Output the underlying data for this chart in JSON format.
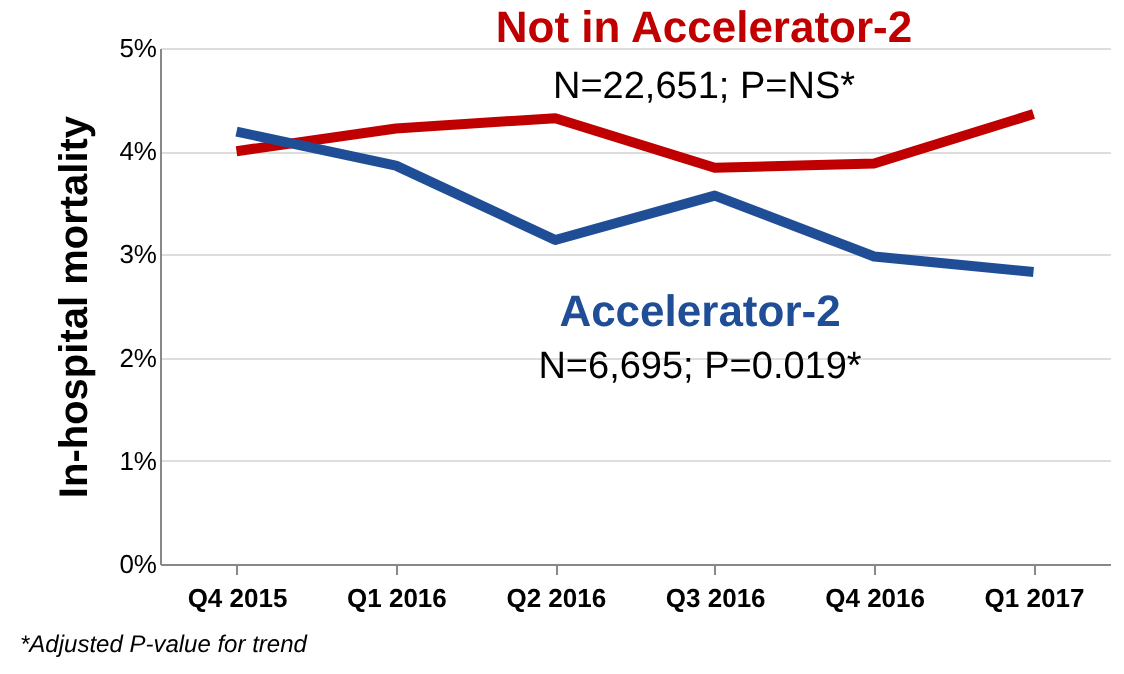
{
  "chart_data": {
    "type": "line",
    "ylabel": "In-hospital mortality",
    "categories": [
      "Q4 2015",
      "Q1 2016",
      "Q2 2016",
      "Q3 2016",
      "Q4 2016",
      "Q1 2017"
    ],
    "series": [
      {
        "name": "Not in Accelerator-2",
        "color": "#c00000",
        "values": [
          4.0,
          4.22,
          4.32,
          3.84,
          3.88,
          4.36
        ]
      },
      {
        "name": "Accelerator-2",
        "color": "#1f4e96",
        "values": [
          4.19,
          3.86,
          3.14,
          3.57,
          2.98,
          2.83
        ]
      }
    ],
    "annotations": [
      "N=22,651; P=NS*",
      "N=6,695; P=0.019*",
      "*Adjusted P-value for trend"
    ],
    "ylim": [
      0,
      5
    ],
    "yticks": [
      {
        "value": 0,
        "label": "0%"
      },
      {
        "value": 1,
        "label": "1%"
      },
      {
        "value": 2,
        "label": "2%"
      },
      {
        "value": 3,
        "label": "3%"
      },
      {
        "value": 4,
        "label": "4%"
      },
      {
        "value": 5,
        "label": "5%"
      }
    ],
    "grid": "y",
    "marker": "none",
    "line_style": "solid"
  }
}
